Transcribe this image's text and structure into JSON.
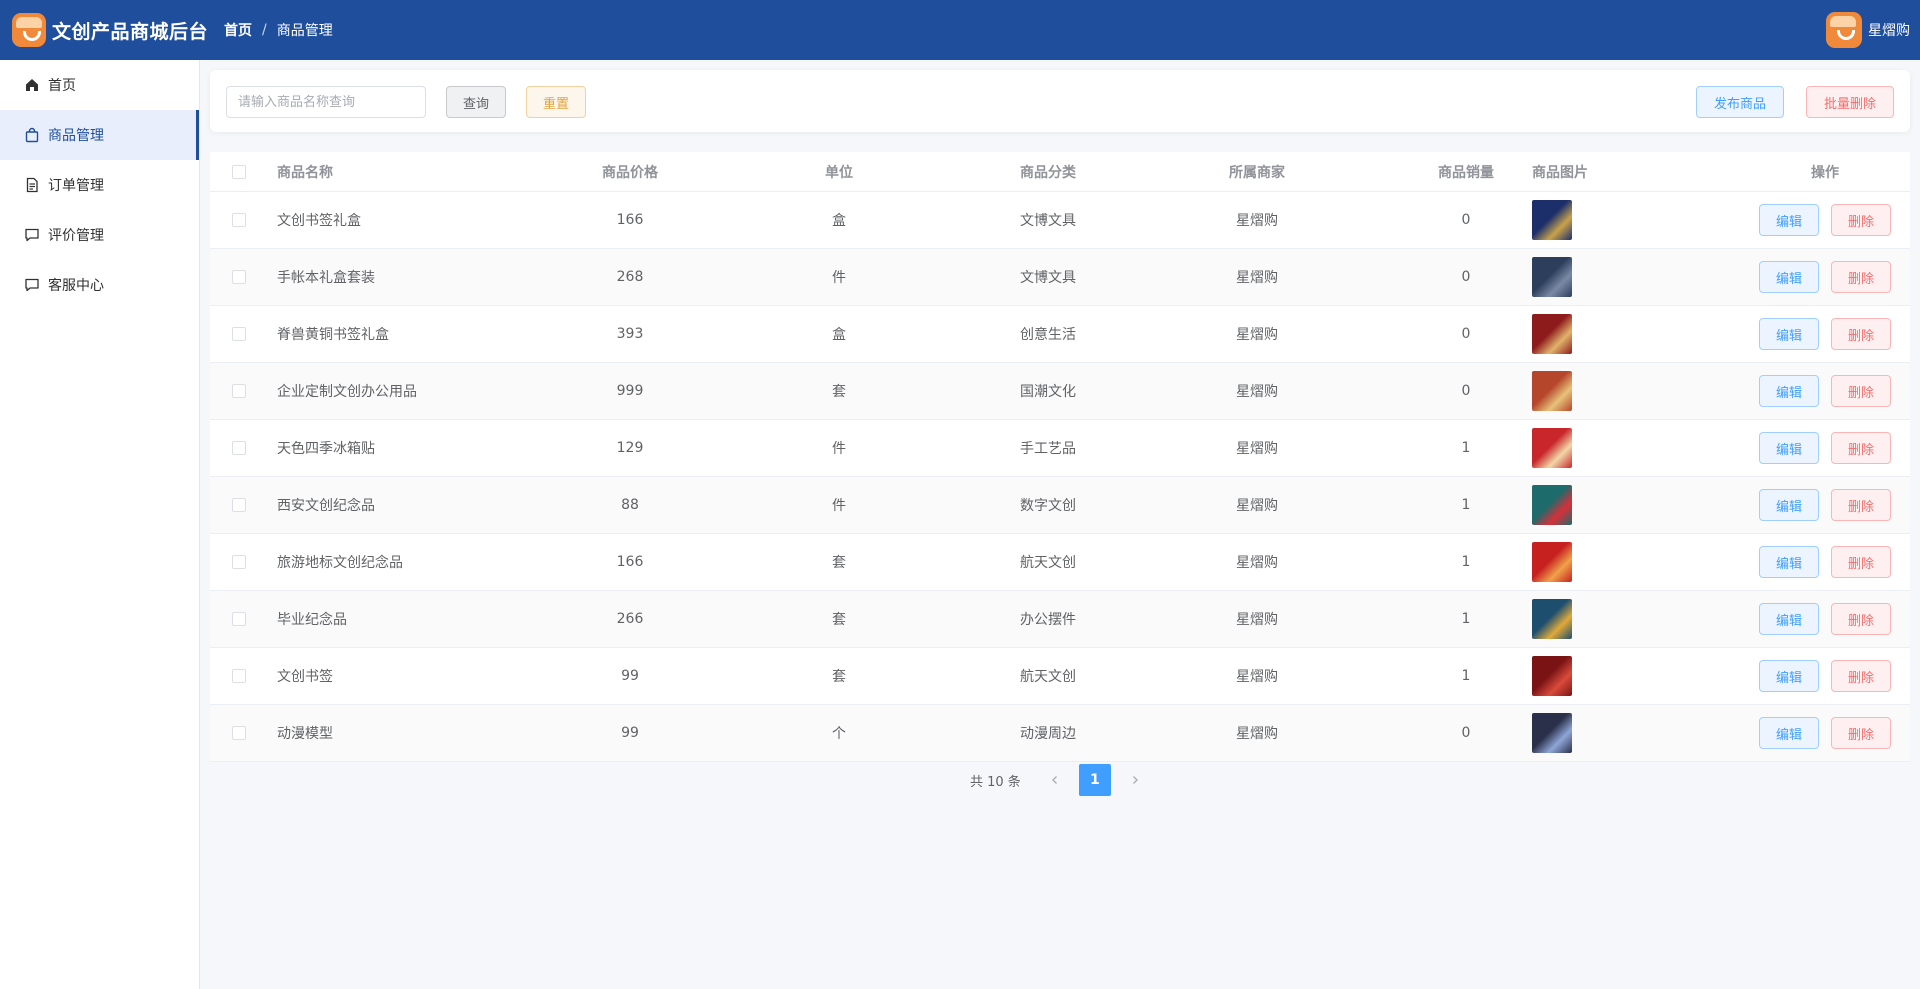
{
  "header": {
    "title": "文创产品商城后台",
    "breadcrumb": [
      "首页",
      "商品管理"
    ],
    "breadcrumb_separator": "/",
    "user_name": "星熠购",
    "bg_color": "#1f4e9d"
  },
  "sidebar": {
    "items": [
      {
        "label": "首页",
        "icon": "home-icon",
        "active": false
      },
      {
        "label": "商品管理",
        "icon": "shopping-bag-icon",
        "active": true
      },
      {
        "label": "订单管理",
        "icon": "document-icon",
        "active": false
      },
      {
        "label": "评价管理",
        "icon": "comment-icon",
        "active": false
      },
      {
        "label": "客服中心",
        "icon": "chat-icon",
        "active": false
      }
    ]
  },
  "search": {
    "placeholder": "请输入商品名称查询",
    "value": "",
    "query_label": "查询",
    "reset_label": "重置",
    "publish_label": "发布商品",
    "batch_delete_label": "批量删除"
  },
  "table": {
    "columns": [
      "商品名称",
      "商品价格",
      "单位",
      "商品分类",
      "所属商家",
      "商品销量",
      "商品图片",
      "操作"
    ],
    "edit_label": "编辑",
    "delete_label": "删除",
    "rows": [
      {
        "name": "文创书签礼盒",
        "price": "166",
        "unit": "盒",
        "category": "文博文具",
        "shop": "星熠购",
        "sales": "0",
        "thumb_colors": [
          "#1c2f6b",
          "#c9a24a"
        ]
      },
      {
        "name": "手帐本礼盒套装",
        "price": "268",
        "unit": "件",
        "category": "文博文具",
        "shop": "星熠购",
        "sales": "0",
        "thumb_colors": [
          "#2c3e5c",
          "#7a8aa6"
        ]
      },
      {
        "name": "脊兽黄铜书签礼盒",
        "price": "393",
        "unit": "盒",
        "category": "创意生活",
        "shop": "星熠购",
        "sales": "0",
        "thumb_colors": [
          "#8e1b1b",
          "#e0b36a"
        ]
      },
      {
        "name": "企业定制文创办公用品",
        "price": "999",
        "unit": "套",
        "category": "国潮文化",
        "shop": "星熠购",
        "sales": "0",
        "thumb_colors": [
          "#b5452b",
          "#e7c27a"
        ]
      },
      {
        "name": "天色四季冰箱贴",
        "price": "129",
        "unit": "件",
        "category": "手工艺品",
        "shop": "星熠购",
        "sales": "1",
        "thumb_colors": [
          "#c8262b",
          "#f1d7a8"
        ]
      },
      {
        "name": "西安文创纪念品",
        "price": "88",
        "unit": "件",
        "category": "数字文创",
        "shop": "星熠购",
        "sales": "1",
        "thumb_colors": [
          "#1d6b6b",
          "#d6303a"
        ]
      },
      {
        "name": "旅游地标文创纪念品",
        "price": "166",
        "unit": "套",
        "category": "航天文创",
        "shop": "星熠购",
        "sales": "1",
        "thumb_colors": [
          "#c6201f",
          "#f0a14a"
        ]
      },
      {
        "name": "毕业纪念品",
        "price": "266",
        "unit": "套",
        "category": "办公摆件",
        "shop": "星熠购",
        "sales": "1",
        "thumb_colors": [
          "#1d4e6e",
          "#e0a93a"
        ]
      },
      {
        "name": "文创书签",
        "price": "99",
        "unit": "套",
        "category": "航天文创",
        "shop": "星熠购",
        "sales": "1",
        "thumb_colors": [
          "#7a1414",
          "#d84b3a"
        ]
      },
      {
        "name": "动漫模型",
        "price": "99",
        "unit": "个",
        "category": "动漫周边",
        "shop": "星熠购",
        "sales": "0",
        "thumb_colors": [
          "#2a2f4a",
          "#8fa6d6"
        ]
      }
    ]
  },
  "pagination": {
    "total_label": "共 10 条",
    "current_page": "1",
    "prev_icon": "chevron-left-icon",
    "next_icon": "chevron-right-icon"
  }
}
